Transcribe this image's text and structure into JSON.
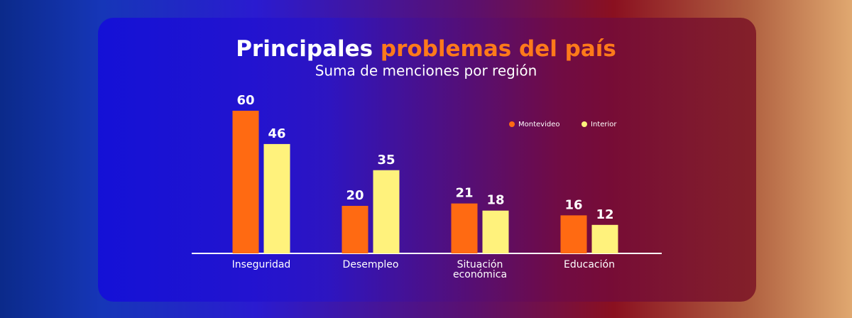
{
  "chart_data": {
    "type": "bar",
    "title": {
      "plain": "Principales",
      "highlight": "problemas del país"
    },
    "subtitle": "Suma de menciones por región",
    "categories": [
      "Inseguridad",
      "Desempleo",
      "Situación económica",
      "Educación"
    ],
    "series": [
      {
        "name": "Montevideo",
        "color": "#ff6a12",
        "values": [
          60,
          20,
          21,
          16
        ]
      },
      {
        "name": "Interior",
        "color": "#fff27c",
        "values": [
          46,
          35,
          18,
          12
        ]
      }
    ],
    "ylim": [
      0,
      60
    ]
  }
}
